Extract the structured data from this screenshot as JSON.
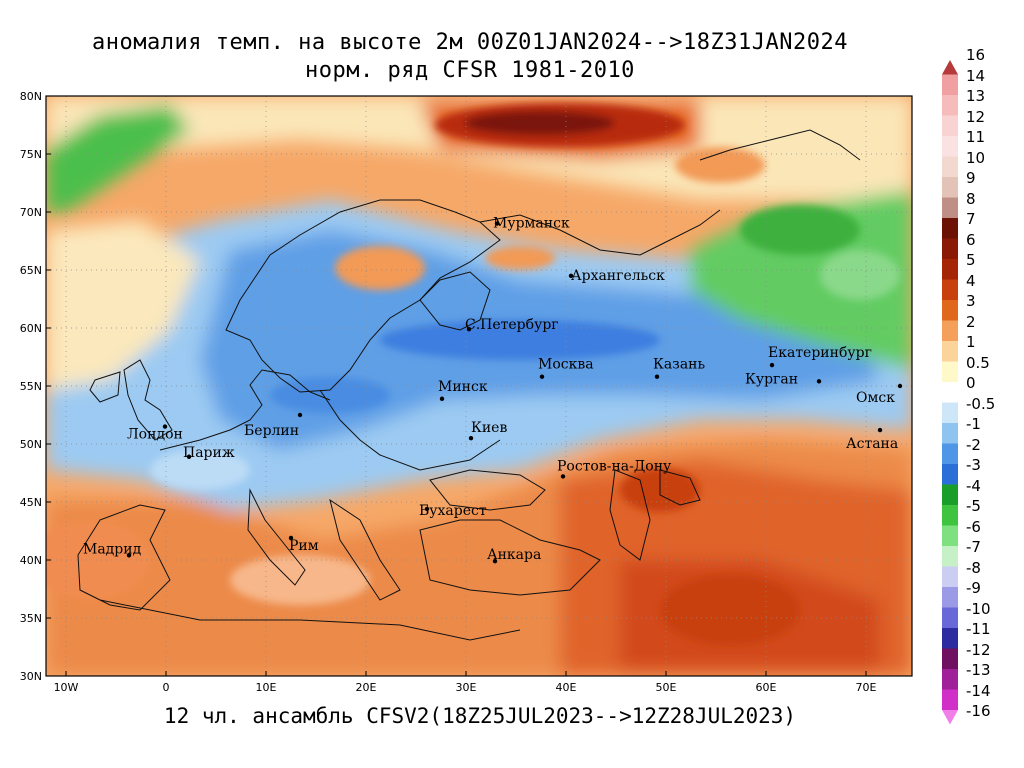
{
  "title": {
    "line1": "аномалия темп. на высоте 2м 00Z01JAN2024-->18Z31JAN2024",
    "line2": "норм. ряд CFSR 1981-2010"
  },
  "subtitle": "12 чл. ансамбль CFSV2(18Z25JUL2023-->12Z28JUL2023)",
  "map": {
    "lat_labels": [
      "80N",
      "75N",
      "70N",
      "65N",
      "60N",
      "55N",
      "50N",
      "45N",
      "40N",
      "35N",
      "30N"
    ],
    "lon_labels": [
      "10W",
      "0",
      "10E",
      "20E",
      "30E",
      "40E",
      "50E",
      "60E",
      "70E"
    ],
    "cities": [
      {
        "name": "Мурманск",
        "lon": 33.1,
        "lat": 69.0
      },
      {
        "name": "Архангельск",
        "lon": 40.5,
        "lat": 64.5
      },
      {
        "name": "С.Петербург",
        "lon": 30.3,
        "lat": 59.9
      },
      {
        "name": "Москва",
        "lon": 37.6,
        "lat": 55.8
      },
      {
        "name": "Казань",
        "lon": 49.1,
        "lat": 55.8
      },
      {
        "name": "Екатеринбург",
        "lon": 60.6,
        "lat": 56.8
      },
      {
        "name": "Курган",
        "lon": 65.3,
        "lat": 55.4
      },
      {
        "name": "Омск",
        "lon": 73.4,
        "lat": 55.0
      },
      {
        "name": "Астана",
        "lon": 71.4,
        "lat": 51.2
      },
      {
        "name": "Минск",
        "lon": 27.6,
        "lat": 53.9
      },
      {
        "name": "Киев",
        "lon": 30.5,
        "lat": 50.5
      },
      {
        "name": "Берлин",
        "lon": 13.4,
        "lat": 52.5
      },
      {
        "name": "Лондон",
        "lon": -0.1,
        "lat": 51.5
      },
      {
        "name": "Париж",
        "lon": 2.3,
        "lat": 48.9
      },
      {
        "name": "Ростов-на-Дону",
        "lon": 39.7,
        "lat": 47.2
      },
      {
        "name": "Бухарест",
        "lon": 26.1,
        "lat": 44.4
      },
      {
        "name": "Рим",
        "lon": 12.5,
        "lat": 41.9
      },
      {
        "name": "Мадрид",
        "lon": -3.7,
        "lat": 40.4
      },
      {
        "name": "Анкара",
        "lon": 32.9,
        "lat": 39.9
      }
    ]
  },
  "colorbar": {
    "labels": [
      "16",
      "14",
      "13",
      "12",
      "11",
      "10",
      "9",
      "8",
      "7",
      "6",
      "5",
      "4",
      "3",
      "2",
      "1",
      "0.5",
      "0",
      "-0.5",
      "-1",
      "-2",
      "-3",
      "-4",
      "-5",
      "-6",
      "-7",
      "-8",
      "-9",
      "-10",
      "-11",
      "-12",
      "-13",
      "-14",
      "-16"
    ],
    "colors": [
      "#b53a3a",
      "#f0a0a0",
      "#f6bcbc",
      "#f9d2d2",
      "#fae2e2",
      "#f2d8cf",
      "#e3c3b8",
      "#bf8f85",
      "#6b1205",
      "#8a1a06",
      "#a52607",
      "#c8400c",
      "#e0681c",
      "#f4a05a",
      "#fbd49b",
      "#fff8c8",
      "#ffffff",
      "#cde6f8",
      "#8fc3f0",
      "#4f96e6",
      "#2a6fd8",
      "#1a9e2a",
      "#3ec43e",
      "#7ee07e",
      "#c6f0c6",
      "#cccdf2",
      "#9a9ae6",
      "#6868d8",
      "#2c2ca0",
      "#701060",
      "#a0209a",
      "#d030c8",
      "#f080e8"
    ]
  }
}
